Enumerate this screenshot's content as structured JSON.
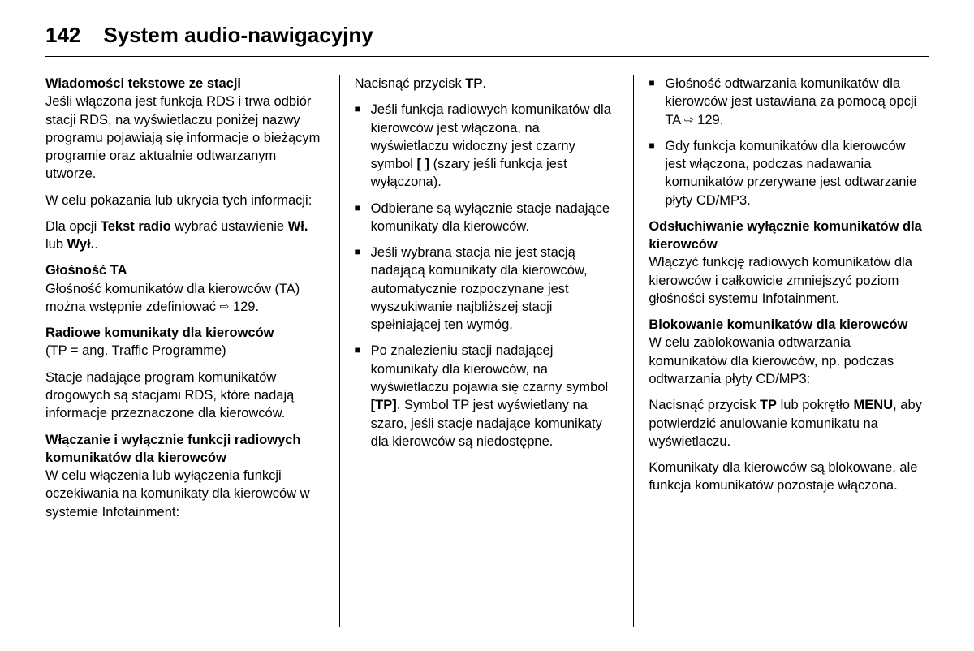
{
  "page_number": "142",
  "page_title": "System audio-nawigacyjny",
  "col1": {
    "h1": "Wiadomości tekstowe ze stacji",
    "p1": "Jeśli włączona jest funkcja RDS i trwa odbiór stacji RDS, na wyświetlaczu poniżej nazwy programu pojawiają się informacje o bieżącym programie oraz aktualnie odtwarzanym utworze.",
    "p2": "W celu pokazania lub ukrycia tych informacji:",
    "p3a": "Dla opcji ",
    "p3b": "Tekst radio",
    "p3c": " wybrać ustawienie ",
    "p3d": "Wł.",
    "p3e": " lub ",
    "p3f": "Wył.",
    "p3g": ".",
    "h2": "Głośność TA",
    "p4a": "Głośność komunikatów dla kierowców (TA) można wstępnie zdefiniować ",
    "p4b": " 129.",
    "h3": "Radiowe komunikaty dla kierowców",
    "p5": "(TP = ang. Traffic Programme)",
    "p6": "Stacje nadające program komunikatów drogowych są stacjami RDS, które nadają informacje przeznaczone dla kierowców.",
    "h4": "Włączanie i wyłącznie funkcji radiowych komunikatów dla kierowców",
    "p7": "W celu włączenia lub wyłączenia funkcji oczekiwania na komunikaty dla kierowców w systemie Infotainment:"
  },
  "col2": {
    "p1a": "Nacisnąć przycisk ",
    "p1b": "TP",
    "p1c": ".",
    "b1a": "Jeśli funkcja radiowych komunikatów dla kierowców jest włączona, na wyświetlaczu widoczny jest czarny symbol ",
    "b1b": "[ ]",
    "b1c": " (szary jeśli funkcja jest wyłączona).",
    "b2": "Odbierane są wyłącznie stacje nadające komunikaty dla kierowców.",
    "b3": "Jeśli wybrana stacja nie jest stacją nadającą komunikaty dla kierowców, automatycznie rozpoczynane jest wyszukiwanie najbliższej stacji spełniającej ten wymóg.",
    "b4a": "Po znalezieniu stacji nadającej komunikaty dla kierowców, na wyświetlaczu pojawia się czarny symbol ",
    "b4b": "[TP]",
    "b4c": ". Symbol TP jest wyświetlany na szaro, jeśli stacje nadające komunikaty dla kierowców są niedostępne."
  },
  "col3": {
    "b1a": "Głośność odtwarzania komunikatów dla kierowców jest ustawiana za pomocą opcji TA ",
    "b1b": " 129.",
    "b2": "Gdy funkcja komunikatów dla kierowców jest włączona, podczas nadawania komunikatów przerywane jest odtwarzanie płyty CD/MP3.",
    "h1": "Odsłuchiwanie wyłącznie komunikatów dla kierowców",
    "p1": "Włączyć funkcję radiowych komunikatów dla kierowców i całkowicie zmniejszyć poziom głośności systemu Infotainment.",
    "h2": "Blokowanie komunikatów dla kierowców",
    "p2": "W celu zablokowania odtwarzania komunikatów dla kierowców, np. podczas odtwarzania płyty CD/MP3:",
    "p3a": "Nacisnąć przycisk ",
    "p3b": "TP",
    "p3c": " lub pokrętło ",
    "p3d": "MENU",
    "p3e": ", aby potwierdzić anulowanie komunikatu na wyświetlaczu.",
    "p4": "Komunikaty dla kierowców są blokowane, ale funkcja komunikatów pozostaje włączona."
  }
}
